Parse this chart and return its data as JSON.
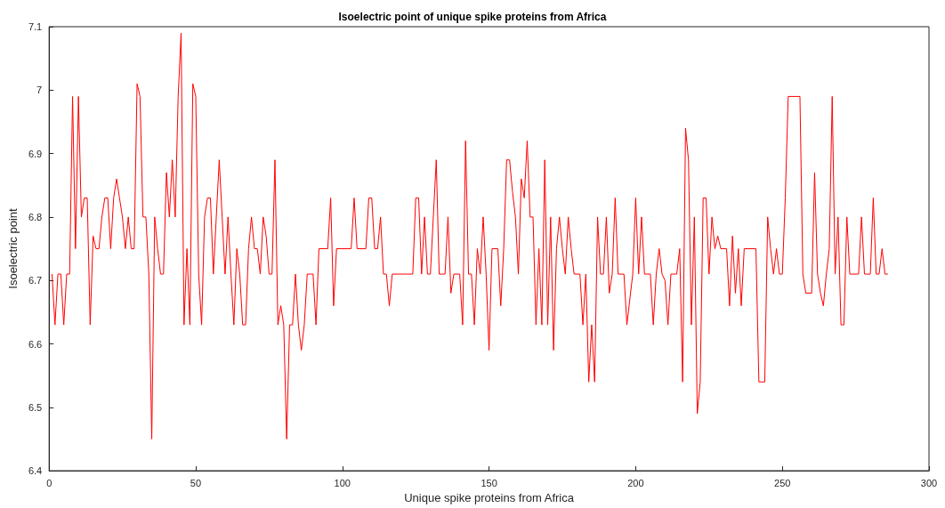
{
  "chart_data": {
    "type": "line",
    "title": "Isoelectric point of unique spike proteins from Africa",
    "xlabel": "Unique spike proteins from Africa",
    "ylabel": "Isoelectric point",
    "x": [
      1,
      2,
      3,
      4,
      5,
      6,
      7,
      8,
      9,
      10,
      11,
      12,
      13,
      14,
      15,
      16,
      17,
      18,
      19,
      20,
      21,
      22,
      23,
      24,
      25,
      26,
      27,
      28,
      29,
      30,
      31,
      32,
      33,
      34,
      35,
      36,
      37,
      38,
      39,
      40,
      41,
      42,
      43,
      44,
      45,
      46,
      47,
      48,
      49,
      50,
      51,
      52,
      53,
      54,
      55,
      56,
      57,
      58,
      59,
      60,
      61,
      62,
      63,
      64,
      65,
      66,
      67,
      68,
      69,
      70,
      71,
      72,
      73,
      74,
      75,
      76,
      77,
      78,
      79,
      80,
      81,
      82,
      83,
      84,
      85,
      86,
      87,
      88,
      89,
      90,
      91,
      92,
      95,
      96,
      97,
      98,
      103,
      104,
      105,
      108,
      109,
      110,
      111,
      112,
      113,
      114,
      115,
      116,
      117,
      124,
      125,
      126,
      127,
      128,
      129,
      130,
      132,
      133,
      135,
      136,
      137,
      138,
      140,
      141,
      142,
      143,
      144,
      145,
      146,
      147,
      148,
      149,
      150,
      151,
      153,
      154,
      155,
      156,
      157,
      158,
      159,
      160,
      161,
      162,
      163,
      164,
      165,
      166,
      167,
      168,
      169,
      170,
      171,
      172,
      173,
      174,
      175,
      176,
      177,
      178,
      179,
      181,
      182,
      183,
      184,
      185,
      186,
      187,
      188,
      189,
      190,
      191,
      192,
      193,
      194,
      196,
      197,
      199,
      200,
      201,
      202,
      203,
      205,
      206,
      207,
      208,
      209,
      210,
      211,
      212,
      214,
      215,
      216,
      217,
      218,
      219,
      220,
      221,
      222,
      223,
      224,
      225,
      226,
      227,
      228,
      229,
      231,
      232,
      233,
      234,
      235,
      236,
      237,
      241,
      242,
      244,
      245,
      246,
      247,
      248,
      249,
      250,
      251,
      252,
      256,
      257,
      258,
      260,
      261,
      262,
      263,
      264,
      265,
      266,
      267,
      268,
      269,
      270,
      271,
      272,
      273,
      276,
      277,
      278,
      280,
      281,
      282,
      283,
      284,
      285,
      286
    ],
    "series": [
      {
        "color": "#ff0000",
        "values": [
          6.71,
          6.63,
          6.71,
          6.71,
          6.63,
          6.71,
          6.71,
          6.99,
          6.75,
          6.99,
          6.8,
          6.83,
          6.83,
          6.63,
          6.77,
          6.75,
          6.75,
          6.8,
          6.83,
          6.83,
          6.75,
          6.83,
          6.86,
          6.83,
          6.8,
          6.75,
          6.8,
          6.75,
          6.75,
          7.01,
          6.99,
          6.8,
          6.8,
          6.71,
          6.45,
          6.8,
          6.75,
          6.71,
          6.71,
          6.87,
          6.8,
          6.89,
          6.8,
          6.99,
          7.09,
          6.63,
          6.75,
          6.63,
          7.01,
          6.99,
          6.71,
          6.63,
          6.8,
          6.83,
          6.83,
          6.71,
          6.8,
          6.89,
          6.8,
          6.71,
          6.8,
          6.71,
          6.63,
          6.75,
          6.71,
          6.63,
          6.63,
          6.75,
          6.8,
          6.75,
          6.75,
          6.71,
          6.8,
          6.77,
          6.71,
          6.71,
          6.89,
          6.63,
          6.66,
          6.63,
          6.45,
          6.63,
          6.63,
          6.71,
          6.63,
          6.59,
          6.63,
          6.71,
          6.71,
          6.71,
          6.63,
          6.75,
          6.75,
          6.83,
          6.66,
          6.75,
          6.75,
          6.83,
          6.75,
          6.75,
          6.83,
          6.83,
          6.75,
          6.75,
          6.8,
          6.71,
          6.71,
          6.66,
          6.71,
          6.71,
          6.83,
          6.83,
          6.71,
          6.8,
          6.71,
          6.71,
          6.89,
          6.71,
          6.71,
          6.8,
          6.68,
          6.71,
          6.71,
          6.63,
          6.92,
          6.71,
          6.71,
          6.63,
          6.75,
          6.71,
          6.8,
          6.71,
          6.59,
          6.75,
          6.75,
          6.66,
          6.75,
          6.89,
          6.89,
          6.84,
          6.8,
          6.71,
          6.86,
          6.83,
          6.92,
          6.8,
          6.8,
          6.63,
          6.75,
          6.63,
          6.89,
          6.63,
          6.8,
          6.59,
          6.75,
          6.8,
          6.75,
          6.71,
          6.8,
          6.75,
          6.71,
          6.71,
          6.63,
          6.71,
          6.54,
          6.63,
          6.54,
          6.8,
          6.71,
          6.71,
          6.8,
          6.68,
          6.71,
          6.83,
          6.71,
          6.71,
          6.63,
          6.71,
          6.83,
          6.71,
          6.8,
          6.71,
          6.71,
          6.63,
          6.71,
          6.75,
          6.71,
          6.7,
          6.63,
          6.71,
          6.71,
          6.75,
          6.54,
          6.94,
          6.89,
          6.63,
          6.8,
          6.49,
          6.54,
          6.83,
          6.83,
          6.71,
          6.8,
          6.75,
          6.77,
          6.75,
          6.75,
          6.66,
          6.77,
          6.68,
          6.75,
          6.66,
          6.75,
          6.75,
          6.54,
          6.54,
          6.8,
          6.75,
          6.71,
          6.75,
          6.71,
          6.71,
          6.83,
          6.99,
          6.99,
          6.71,
          6.68,
          6.68,
          6.87,
          6.71,
          6.68,
          6.66,
          6.71,
          6.75,
          6.99,
          6.71,
          6.8,
          6.63,
          6.63,
          6.8,
          6.71,
          6.71,
          6.8,
          6.71,
          6.71,
          6.83,
          6.71,
          6.71,
          6.75,
          6.71,
          6.71
        ]
      }
    ],
    "xlim": [
      0,
      300
    ],
    "xticks": [
      0,
      50,
      100,
      150,
      200,
      250,
      300
    ],
    "ylim": [
      6.4,
      7.1
    ],
    "yticks": [
      6.4,
      6.5,
      6.6,
      6.7,
      6.8,
      6.9,
      7,
      7.1
    ],
    "grid": false,
    "marker": "none",
    "line_style": "solid"
  }
}
